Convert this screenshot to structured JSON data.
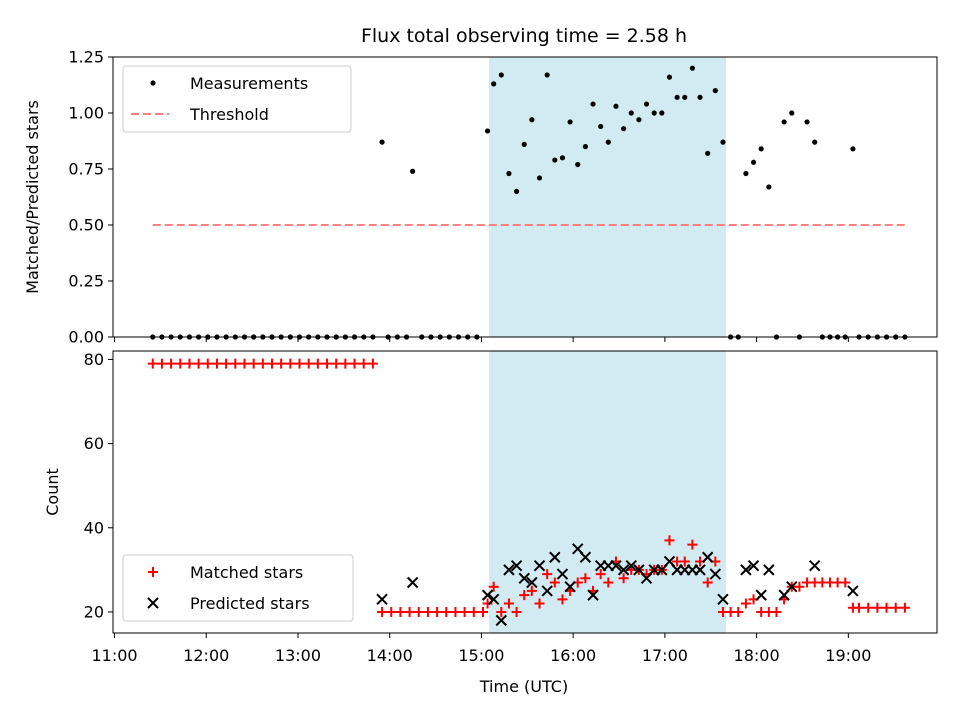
{
  "figure": {
    "title": "Flux total observing time = 2.58 h"
  },
  "chart_data": [
    {
      "type": "scatter",
      "title": "Flux total observing time = 2.58 h",
      "ylabel": "Matched/Predicted stars",
      "xlabel": "",
      "xlim": [
        "10:59",
        "19:58"
      ],
      "ylim": [
        0,
        1.25
      ],
      "yticks": [
        0.0,
        0.25,
        0.5,
        0.75,
        1.0,
        1.25
      ],
      "ytick_labels": [
        "0.00",
        "0.25",
        "0.50",
        "0.75",
        "1.00",
        "1.25"
      ],
      "shaded_interval": {
        "start": "15:05",
        "end": "17:40",
        "color": "#add8e6"
      },
      "legend": {
        "location": "upper left",
        "entries": [
          "Measurements",
          "Threshold"
        ]
      },
      "series": [
        {
          "name": "Measurements",
          "marker": "dot",
          "color": "#000000",
          "points": [
            [
              "11:25",
              0
            ],
            [
              "11:31",
              0
            ],
            [
              "11:37",
              0
            ],
            [
              "11:43",
              0
            ],
            [
              "11:49",
              0
            ],
            [
              "11:55",
              0
            ],
            [
              "12:01",
              0
            ],
            [
              "12:07",
              0
            ],
            [
              "12:13",
              0
            ],
            [
              "12:19",
              0
            ],
            [
              "12:25",
              0
            ],
            [
              "12:31",
              0
            ],
            [
              "12:37",
              0
            ],
            [
              "12:43",
              0
            ],
            [
              "12:49",
              0
            ],
            [
              "12:55",
              0
            ],
            [
              "13:01",
              0
            ],
            [
              "13:07",
              0
            ],
            [
              "13:13",
              0
            ],
            [
              "13:19",
              0
            ],
            [
              "13:25",
              0
            ],
            [
              "13:31",
              0
            ],
            [
              "13:37",
              0
            ],
            [
              "13:43",
              0
            ],
            [
              "13:49",
              0
            ],
            [
              "13:55",
              0.87
            ],
            [
              "13:59",
              0
            ],
            [
              "14:05",
              0
            ],
            [
              "14:11",
              0
            ],
            [
              "14:15",
              0.74
            ],
            [
              "14:21",
              0
            ],
            [
              "14:27",
              0
            ],
            [
              "14:33",
              0
            ],
            [
              "14:39",
              0
            ],
            [
              "14:45",
              0
            ],
            [
              "14:51",
              0
            ],
            [
              "14:57",
              0
            ],
            [
              "15:04",
              0.92
            ],
            [
              "15:08",
              1.13
            ],
            [
              "15:13",
              1.17
            ],
            [
              "15:18",
              0.73
            ],
            [
              "15:23",
              0.65
            ],
            [
              "15:28",
              0.86
            ],
            [
              "15:33",
              0.97
            ],
            [
              "15:38",
              0.71
            ],
            [
              "15:43",
              1.17
            ],
            [
              "15:48",
              0.79
            ],
            [
              "15:53",
              0.8
            ],
            [
              "15:58",
              0.96
            ],
            [
              "16:03",
              0.77
            ],
            [
              "16:08",
              0.85
            ],
            [
              "16:13",
              1.04
            ],
            [
              "16:18",
              0.94
            ],
            [
              "16:23",
              0.87
            ],
            [
              "16:28",
              1.03
            ],
            [
              "16:33",
              0.93
            ],
            [
              "16:38",
              1.0
            ],
            [
              "16:43",
              0.97
            ],
            [
              "16:48",
              1.04
            ],
            [
              "16:53",
              1.0
            ],
            [
              "16:58",
              1.0
            ],
            [
              "17:03",
              1.16
            ],
            [
              "17:08",
              1.07
            ],
            [
              "17:13",
              1.07
            ],
            [
              "17:18",
              1.2
            ],
            [
              "17:23",
              1.07
            ],
            [
              "17:28",
              0.82
            ],
            [
              "17:33",
              1.1
            ],
            [
              "17:38",
              0.87
            ],
            [
              "17:43",
              0
            ],
            [
              "17:48",
              0
            ],
            [
              "17:53",
              0.73
            ],
            [
              "17:58",
              0.78
            ],
            [
              "18:03",
              0.84
            ],
            [
              "18:08",
              0.67
            ],
            [
              "18:13",
              0
            ],
            [
              "18:18",
              0.96
            ],
            [
              "18:23",
              1.0
            ],
            [
              "18:28",
              0
            ],
            [
              "18:33",
              0.96
            ],
            [
              "18:38",
              0.87
            ],
            [
              "18:43",
              0
            ],
            [
              "18:48",
              0
            ],
            [
              "18:53",
              0
            ],
            [
              "18:58",
              0
            ],
            [
              "19:03",
              0.84
            ],
            [
              "19:07",
              0
            ],
            [
              "19:13",
              0
            ],
            [
              "19:19",
              0
            ],
            [
              "19:25",
              0
            ],
            [
              "19:31",
              0
            ],
            [
              "19:37",
              0
            ]
          ]
        },
        {
          "name": "Threshold",
          "style": "dashed",
          "color": "#ff7f7f",
          "x": [
            "11:25",
            "19:37"
          ],
          "y": [
            0.5,
            0.5
          ]
        }
      ]
    },
    {
      "type": "scatter",
      "title": "",
      "xlabel": "Time (UTC)",
      "ylabel": "Count",
      "xlim": [
        "10:59",
        "19:58"
      ],
      "ylim": [
        15,
        82
      ],
      "yticks": [
        20,
        40,
        60,
        80
      ],
      "ytick_labels": [
        "20",
        "40",
        "60",
        "80"
      ],
      "xticks": [
        "11:00",
        "12:00",
        "13:00",
        "14:00",
        "15:00",
        "16:00",
        "17:00",
        "18:00",
        "19:00"
      ],
      "xtick_labels": [
        "11:00",
        "12:00",
        "13:00",
        "14:00",
        "15:00",
        "16:00",
        "17:00",
        "18:00",
        "19:00"
      ],
      "shaded_interval": {
        "start": "15:05",
        "end": "17:40",
        "color": "#add8e6"
      },
      "legend": {
        "location": "lower left",
        "entries": [
          "Matched stars",
          "Predicted stars"
        ]
      },
      "series": [
        {
          "name": "Matched stars",
          "marker": "plus",
          "color": "#ff0000",
          "points": [
            [
              "11:25",
              79
            ],
            [
              "11:31",
              79
            ],
            [
              "11:37",
              79
            ],
            [
              "11:43",
              79
            ],
            [
              "11:49",
              79
            ],
            [
              "11:55",
              79
            ],
            [
              "12:01",
              79
            ],
            [
              "12:07",
              79
            ],
            [
              "12:13",
              79
            ],
            [
              "12:19",
              79
            ],
            [
              "12:25",
              79
            ],
            [
              "12:31",
              79
            ],
            [
              "12:37",
              79
            ],
            [
              "12:43",
              79
            ],
            [
              "12:49",
              79
            ],
            [
              "12:55",
              79
            ],
            [
              "13:01",
              79
            ],
            [
              "13:07",
              79
            ],
            [
              "13:13",
              79
            ],
            [
              "13:19",
              79
            ],
            [
              "13:25",
              79
            ],
            [
              "13:31",
              79
            ],
            [
              "13:37",
              79
            ],
            [
              "13:43",
              79
            ],
            [
              "13:49",
              79
            ],
            [
              "13:55",
              20
            ],
            [
              "14:01",
              20
            ],
            [
              "14:07",
              20
            ],
            [
              "14:13",
              20
            ],
            [
              "14:19",
              20
            ],
            [
              "14:25",
              20
            ],
            [
              "14:31",
              20
            ],
            [
              "14:37",
              20
            ],
            [
              "14:43",
              20
            ],
            [
              "14:49",
              20
            ],
            [
              "14:55",
              20
            ],
            [
              "15:01",
              20
            ],
            [
              "15:04",
              22
            ],
            [
              "15:08",
              26
            ],
            [
              "15:13",
              20
            ],
            [
              "15:18",
              22
            ],
            [
              "15:23",
              20
            ],
            [
              "15:28",
              24
            ],
            [
              "15:33",
              25
            ],
            [
              "15:38",
              22
            ],
            [
              "15:43",
              29
            ],
            [
              "15:48",
              27
            ],
            [
              "15:53",
              23
            ],
            [
              "15:58",
              25
            ],
            [
              "16:03",
              27
            ],
            [
              "16:08",
              28
            ],
            [
              "16:13",
              25
            ],
            [
              "16:18",
              29
            ],
            [
              "16:23",
              27
            ],
            [
              "16:28",
              32
            ],
            [
              "16:33",
              28
            ],
            [
              "16:38",
              30
            ],
            [
              "16:43",
              30
            ],
            [
              "16:48",
              29
            ],
            [
              "16:53",
              30
            ],
            [
              "16:58",
              30
            ],
            [
              "17:03",
              37
            ],
            [
              "17:08",
              32
            ],
            [
              "17:13",
              32
            ],
            [
              "17:18",
              36
            ],
            [
              "17:23",
              32
            ],
            [
              "17:28",
              27
            ],
            [
              "17:33",
              32
            ],
            [
              "17:38",
              20
            ],
            [
              "17:43",
              20
            ],
            [
              "17:48",
              20
            ],
            [
              "17:53",
              22
            ],
            [
              "17:58",
              23
            ],
            [
              "18:03",
              20
            ],
            [
              "18:08",
              20
            ],
            [
              "18:13",
              20
            ],
            [
              "18:18",
              23
            ],
            [
              "18:23",
              26
            ],
            [
              "18:28",
              26
            ],
            [
              "18:33",
              27
            ],
            [
              "18:38",
              27
            ],
            [
              "18:43",
              27
            ],
            [
              "18:48",
              27
            ],
            [
              "18:53",
              27
            ],
            [
              "18:58",
              27
            ],
            [
              "19:03",
              21
            ],
            [
              "19:07",
              21
            ],
            [
              "19:13",
              21
            ],
            [
              "19:19",
              21
            ],
            [
              "19:25",
              21
            ],
            [
              "19:31",
              21
            ],
            [
              "19:37",
              21
            ]
          ]
        },
        {
          "name": "Predicted stars",
          "marker": "x",
          "color": "#000000",
          "points": [
            [
              "13:55",
              23
            ],
            [
              "14:15",
              27
            ],
            [
              "15:04",
              24
            ],
            [
              "15:08",
              23
            ],
            [
              "15:13",
              18
            ],
            [
              "15:18",
              30
            ],
            [
              "15:23",
              31
            ],
            [
              "15:28",
              28
            ],
            [
              "15:33",
              27
            ],
            [
              "15:38",
              31
            ],
            [
              "15:43",
              25
            ],
            [
              "15:48",
              33
            ],
            [
              "15:53",
              29
            ],
            [
              "15:58",
              26
            ],
            [
              "16:03",
              35
            ],
            [
              "16:08",
              33
            ],
            [
              "16:13",
              24
            ],
            [
              "16:18",
              31
            ],
            [
              "16:23",
              31
            ],
            [
              "16:28",
              31
            ],
            [
              "16:33",
              30
            ],
            [
              "16:38",
              31
            ],
            [
              "16:43",
              30
            ],
            [
              "16:48",
              28
            ],
            [
              "16:53",
              30
            ],
            [
              "16:58",
              30
            ],
            [
              "17:03",
              32
            ],
            [
              "17:08",
              30
            ],
            [
              "17:13",
              30
            ],
            [
              "17:18",
              30
            ],
            [
              "17:23",
              30
            ],
            [
              "17:28",
              33
            ],
            [
              "17:33",
              29
            ],
            [
              "17:38",
              23
            ],
            [
              "17:53",
              30
            ],
            [
              "17:58",
              31
            ],
            [
              "18:03",
              24
            ],
            [
              "18:08",
              30
            ],
            [
              "18:18",
              24
            ],
            [
              "18:23",
              26
            ],
            [
              "18:38",
              31
            ],
            [
              "19:03",
              25
            ]
          ]
        }
      ]
    }
  ]
}
